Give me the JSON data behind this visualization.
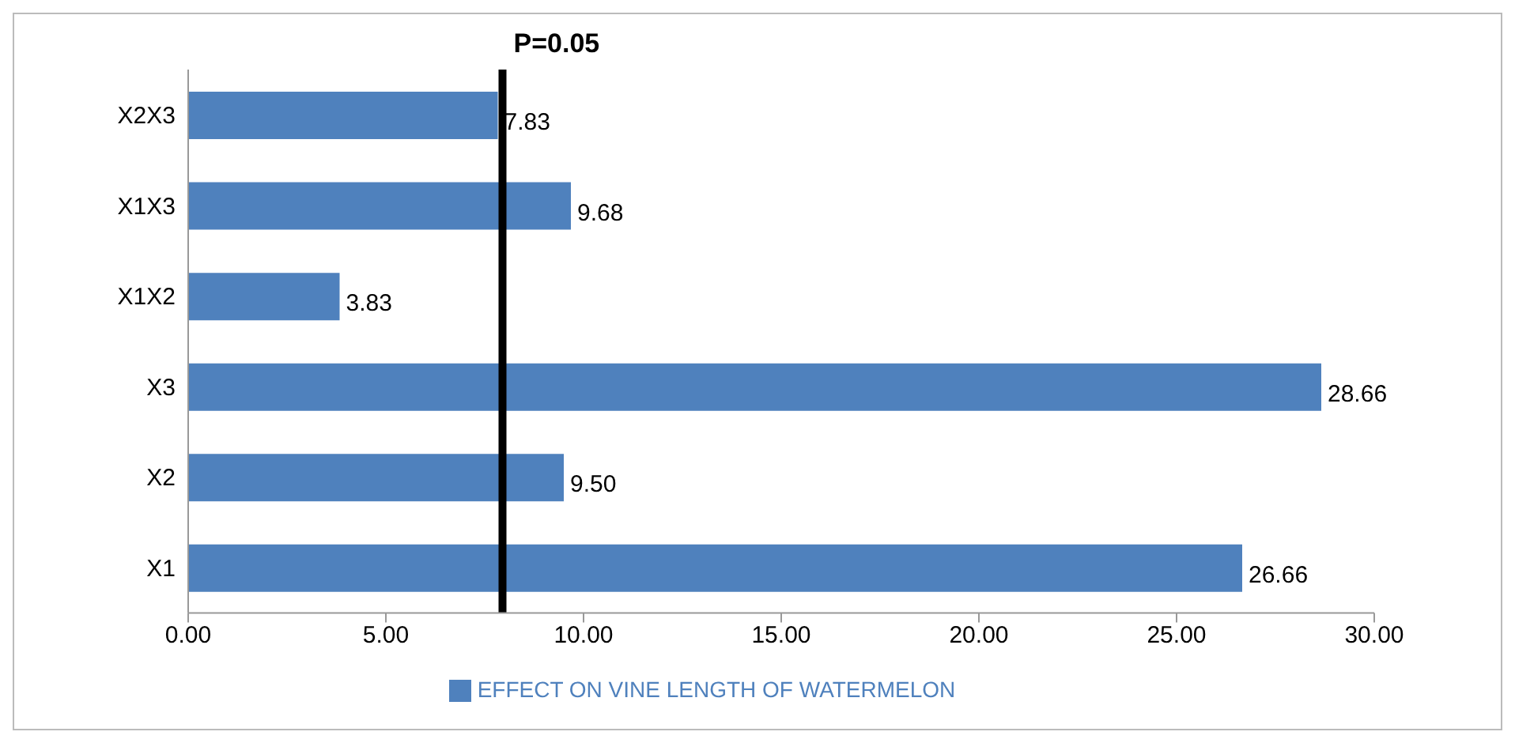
{
  "chart_data": {
    "type": "bar",
    "orientation": "horizontal",
    "categories": [
      "X2X3",
      "X1X3",
      "X1X2",
      "X3",
      "X2",
      "X1"
    ],
    "series": [
      {
        "name": "EFFECT ON VINE LENGTH OF WATERMELON",
        "color": "#4f81bd",
        "values": [
          7.83,
          9.68,
          3.83,
          28.66,
          9.5,
          26.66
        ],
        "value_labels": [
          "7.83",
          "9.68",
          "3.83",
          "28.66",
          "9.50",
          "26.66"
        ]
      }
    ],
    "xlim": [
      0,
      30
    ],
    "xticks": [
      {
        "value": 0,
        "label": "0.00"
      },
      {
        "value": 5,
        "label": "5.00"
      },
      {
        "value": 10,
        "label": "10.00"
      },
      {
        "value": 15,
        "label": "15.00"
      },
      {
        "value": 20,
        "label": "20.00"
      },
      {
        "value": 25,
        "label": "25.00"
      },
      {
        "value": 30,
        "label": "30.00"
      }
    ],
    "ref_lines": [
      {
        "axis": "x",
        "value": 7.95,
        "color": "#000000"
      }
    ],
    "annotations": [
      "P=0.05"
    ],
    "grid": false,
    "legend": "bottom"
  }
}
